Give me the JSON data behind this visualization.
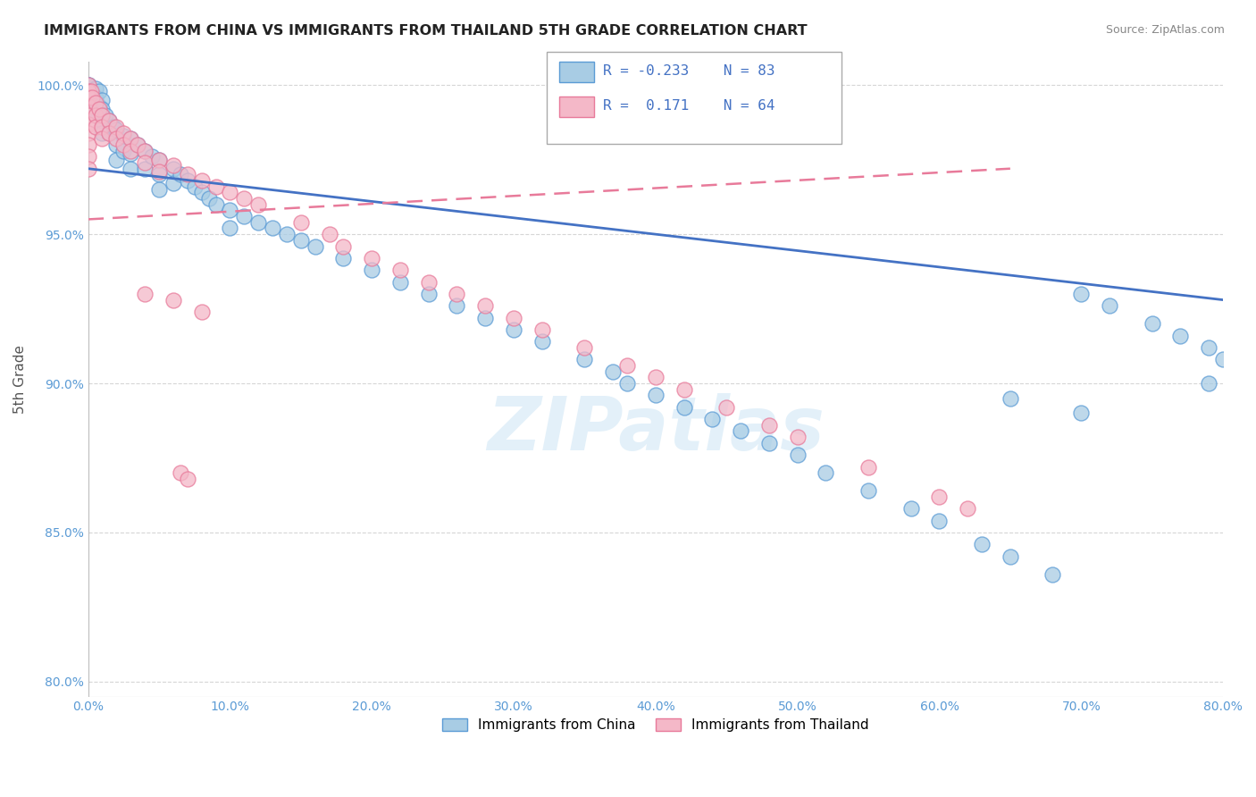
{
  "title": "IMMIGRANTS FROM CHINA VS IMMIGRANTS FROM THAILAND 5TH GRADE CORRELATION CHART",
  "source": "Source: ZipAtlas.com",
  "ylabel": "5th Grade",
  "legend_label_blue": "Immigrants from China",
  "legend_label_pink": "Immigrants from Thailand",
  "r_blue": -0.233,
  "n_blue": 83,
  "r_pink": 0.171,
  "n_pink": 64,
  "xlim": [
    0.0,
    0.8
  ],
  "ylim": [
    0.795,
    1.008
  ],
  "xticks": [
    0.0,
    0.1,
    0.2,
    0.3,
    0.4,
    0.5,
    0.6,
    0.7,
    0.8
  ],
  "yticks": [
    0.8,
    0.85,
    0.9,
    0.95,
    1.0
  ],
  "color_blue": "#a8cce4",
  "color_blue_edge": "#5b9bd5",
  "color_blue_line": "#4472c4",
  "color_pink": "#f4b8c8",
  "color_pink_edge": "#e87a9a",
  "color_pink_line": "#e87a9a",
  "watermark": "ZIPatlas",
  "blue_trend_x": [
    0.0,
    0.8
  ],
  "blue_trend_y": [
    0.972,
    0.928
  ],
  "pink_trend_x": [
    0.0,
    0.65
  ],
  "pink_trend_y": [
    0.955,
    0.972
  ],
  "blue_scatter_x": [
    0.0,
    0.0,
    0.0,
    0.0,
    0.0,
    0.0,
    0.005,
    0.005,
    0.005,
    0.008,
    0.008,
    0.01,
    0.01,
    0.01,
    0.01,
    0.012,
    0.015,
    0.015,
    0.018,
    0.02,
    0.02,
    0.02,
    0.025,
    0.025,
    0.03,
    0.03,
    0.03,
    0.035,
    0.04,
    0.04,
    0.045,
    0.05,
    0.05,
    0.05,
    0.06,
    0.06,
    0.065,
    0.07,
    0.075,
    0.08,
    0.085,
    0.09,
    0.1,
    0.1,
    0.11,
    0.12,
    0.13,
    0.14,
    0.15,
    0.16,
    0.18,
    0.2,
    0.22,
    0.24,
    0.26,
    0.28,
    0.3,
    0.32,
    0.35,
    0.37,
    0.38,
    0.4,
    0.42,
    0.44,
    0.46,
    0.48,
    0.5,
    0.52,
    0.55,
    0.58,
    0.6,
    0.63,
    0.65,
    0.68,
    0.7,
    0.72,
    0.75,
    0.77,
    0.79,
    0.79,
    0.8,
    0.65,
    0.7
  ],
  "blue_scatter_y": [
    1.0,
    1.0,
    0.998,
    0.996,
    0.994,
    0.992,
    0.999,
    0.996,
    0.99,
    0.998,
    0.993,
    0.995,
    0.992,
    0.988,
    0.984,
    0.99,
    0.988,
    0.984,
    0.986,
    0.985,
    0.98,
    0.975,
    0.983,
    0.978,
    0.982,
    0.977,
    0.972,
    0.98,
    0.978,
    0.972,
    0.976,
    0.975,
    0.97,
    0.965,
    0.972,
    0.967,
    0.97,
    0.968,
    0.966,
    0.964,
    0.962,
    0.96,
    0.958,
    0.952,
    0.956,
    0.954,
    0.952,
    0.95,
    0.948,
    0.946,
    0.942,
    0.938,
    0.934,
    0.93,
    0.926,
    0.922,
    0.918,
    0.914,
    0.908,
    0.904,
    0.9,
    0.896,
    0.892,
    0.888,
    0.884,
    0.88,
    0.876,
    0.87,
    0.864,
    0.858,
    0.854,
    0.846,
    0.842,
    0.836,
    0.93,
    0.926,
    0.92,
    0.916,
    0.912,
    0.9,
    0.908,
    0.895,
    0.89
  ],
  "pink_scatter_x": [
    0.0,
    0.0,
    0.0,
    0.0,
    0.0,
    0.0,
    0.0,
    0.0,
    0.0,
    0.0,
    0.002,
    0.003,
    0.005,
    0.005,
    0.005,
    0.008,
    0.01,
    0.01,
    0.01,
    0.015,
    0.015,
    0.02,
    0.02,
    0.025,
    0.025,
    0.03,
    0.03,
    0.035,
    0.04,
    0.04,
    0.05,
    0.05,
    0.06,
    0.07,
    0.08,
    0.09,
    0.1,
    0.11,
    0.12,
    0.15,
    0.17,
    0.18,
    0.2,
    0.22,
    0.24,
    0.26,
    0.28,
    0.3,
    0.32,
    0.35,
    0.38,
    0.4,
    0.42,
    0.45,
    0.48,
    0.5,
    0.55,
    0.6,
    0.62,
    0.04,
    0.06,
    0.08,
    0.065,
    0.07
  ],
  "pink_scatter_y": [
    1.0,
    0.998,
    0.996,
    0.993,
    0.99,
    0.987,
    0.984,
    0.98,
    0.976,
    0.972,
    0.998,
    0.996,
    0.994,
    0.99,
    0.986,
    0.992,
    0.99,
    0.986,
    0.982,
    0.988,
    0.984,
    0.986,
    0.982,
    0.984,
    0.98,
    0.982,
    0.978,
    0.98,
    0.978,
    0.974,
    0.975,
    0.971,
    0.973,
    0.97,
    0.968,
    0.966,
    0.964,
    0.962,
    0.96,
    0.954,
    0.95,
    0.946,
    0.942,
    0.938,
    0.934,
    0.93,
    0.926,
    0.922,
    0.918,
    0.912,
    0.906,
    0.902,
    0.898,
    0.892,
    0.886,
    0.882,
    0.872,
    0.862,
    0.858,
    0.93,
    0.928,
    0.924,
    0.87,
    0.868
  ]
}
